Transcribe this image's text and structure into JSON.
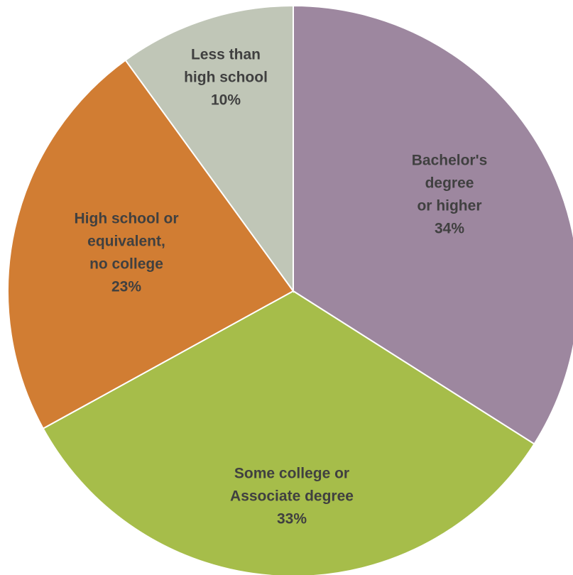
{
  "chart_data": {
    "type": "pie",
    "title": "",
    "start_angle_deg": 0,
    "direction": "clockwise",
    "slices": [
      {
        "category": "Bachelor's degree or higher",
        "label_lines": [
          "Bachelor's",
          "degree",
          "or higher"
        ],
        "value": 34,
        "value_label": "34%",
        "color": "#9d879f"
      },
      {
        "category": "Some college or Associate degree",
        "label_lines": [
          "Some college or",
          "Associate degree"
        ],
        "value": 33,
        "value_label": "33%",
        "color": "#a6bd4a"
      },
      {
        "category": "High school or equivalent, no college",
        "label_lines": [
          "High school or",
          "equivalent,",
          "no college"
        ],
        "value": 23,
        "value_label": "23%",
        "color": "#d17d33"
      },
      {
        "category": "Less than high school",
        "label_lines": [
          "Less than",
          "high school"
        ],
        "value": 10,
        "value_label": "10%",
        "color": "#c0c6b7"
      }
    ]
  }
}
